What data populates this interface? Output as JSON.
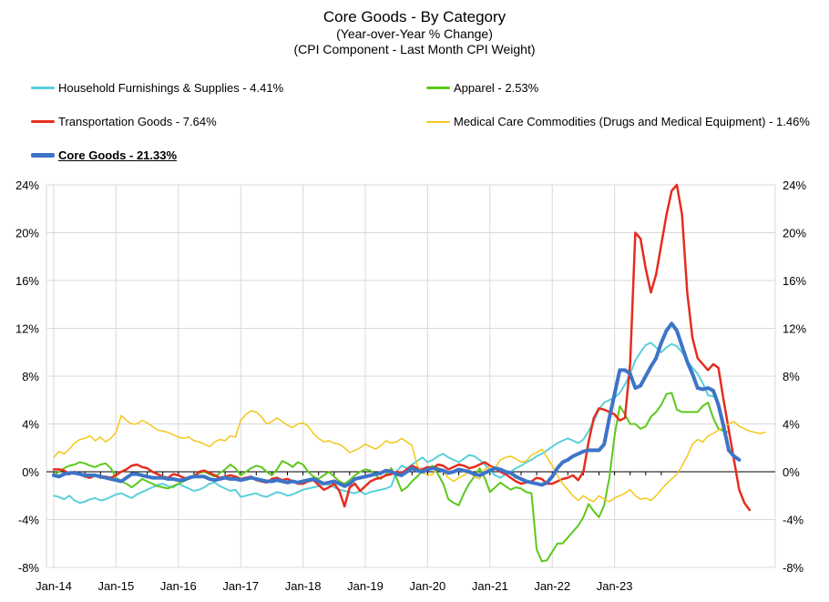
{
  "chart_data": {
    "type": "line",
    "title": "Core Goods - By Category",
    "subtitle1": "(Year-over-Year % Change)",
    "subtitle2": "(CPI Component - Last Month CPI Weight)",
    "x_ticks": [
      "Jan-14",
      "Jan-15",
      "Jan-16",
      "Jan-17",
      "Jan-18",
      "Jan-19",
      "Jan-20",
      "Jan-21",
      "Jan-22",
      "Jan-23"
    ],
    "x_start": "2014-01",
    "ylim": [
      -8,
      24
    ],
    "y_ticks": [
      -8,
      -4,
      0,
      4,
      8,
      12,
      16,
      20,
      24
    ],
    "y_tick_labels_left": [
      "-8%",
      "-4%",
      "0%",
      "4%",
      "8%",
      "12%",
      "16%",
      "20%",
      "24%"
    ],
    "y_tick_labels_right": [
      "-8%",
      "-4%",
      "0%",
      "4%",
      "8%",
      "12%",
      "16%",
      "20%",
      "24%"
    ],
    "grid": true,
    "series": [
      {
        "name": "Household Furnishings & Supplies - 4.41%",
        "color": "#5bcfd9",
        "width": 2,
        "values": [
          -2.0,
          -2.1,
          -2.3,
          -2.0,
          -2.4,
          -2.6,
          -2.5,
          -2.3,
          -2.2,
          -2.4,
          -2.3,
          -2.1,
          -1.9,
          -1.8,
          -2.0,
          -2.2,
          -1.9,
          -1.7,
          -1.5,
          -1.3,
          -1.1,
          -1.0,
          -1.2,
          -1.3,
          -1.0,
          -1.2,
          -1.4,
          -1.6,
          -1.5,
          -1.3,
          -1.0,
          -0.9,
          -1.2,
          -1.4,
          -1.6,
          -1.5,
          -2.1,
          -2.0,
          -1.9,
          -1.8,
          -2.0,
          -2.1,
          -1.9,
          -1.7,
          -1.8,
          -2.0,
          -1.9,
          -1.7,
          -1.5,
          -1.4,
          -1.3,
          -1.2,
          -1.0,
          -1.1,
          -1.3,
          -1.5,
          -1.6,
          -1.7,
          -1.8,
          -1.6,
          -1.9,
          -1.7,
          -1.6,
          -1.5,
          -1.4,
          -1.2,
          0.0,
          0.5,
          0.3,
          0.6,
          0.9,
          1.2,
          0.8,
          1.0,
          1.3,
          1.5,
          1.2,
          1.0,
          0.8,
          1.1,
          1.4,
          1.3,
          1.0,
          0.6,
          0.1,
          -0.3,
          -0.5,
          -0.2,
          0.0,
          0.3,
          0.5,
          0.8,
          1.0,
          1.3,
          1.5,
          1.8,
          2.1,
          2.4,
          2.6,
          2.8,
          2.6,
          2.4,
          2.7,
          3.4,
          4.2,
          5.2,
          5.8,
          6.0,
          6.2,
          6.6,
          7.3,
          8.2,
          9.3,
          10.0,
          10.6,
          10.8,
          10.4,
          10.0,
          10.4,
          10.7,
          10.5,
          10.0,
          9.3,
          8.7,
          8.2,
          7.4,
          6.4,
          6.3
        ]
      },
      {
        "name": "Apparel - 2.53%",
        "color": "#5cc81c",
        "width": 2,
        "values": [
          -0.3,
          0.0,
          0.3,
          0.5,
          0.6,
          0.8,
          0.7,
          0.5,
          0.4,
          0.6,
          0.7,
          0.3,
          -0.5,
          -0.8,
          -1.0,
          -1.3,
          -1.0,
          -0.6,
          -0.8,
          -1.0,
          -1.2,
          -1.3,
          -1.4,
          -1.2,
          -1.0,
          -0.8,
          -0.6,
          -0.3,
          -0.1,
          0.0,
          -0.2,
          -0.4,
          -0.1,
          0.2,
          0.6,
          0.3,
          -0.3,
          0.0,
          0.3,
          0.5,
          0.4,
          0.0,
          -0.3,
          0.2,
          0.9,
          0.7,
          0.4,
          0.8,
          0.6,
          0.0,
          -0.4,
          -0.6,
          -0.3,
          0.0,
          -0.4,
          -0.8,
          -1.0,
          -0.7,
          -0.3,
          0.0,
          0.2,
          0.1,
          -0.3,
          -0.6,
          -0.2,
          0.3,
          -0.5,
          -1.6,
          -1.3,
          -0.8,
          -0.4,
          0.1,
          0.3,
          0.5,
          -0.2,
          -1.0,
          -2.3,
          -2.6,
          -2.8,
          -1.8,
          -1.0,
          -0.4,
          0.3,
          -0.5,
          -1.7,
          -1.3,
          -0.9,
          -1.2,
          -1.5,
          -1.3,
          -1.4,
          -1.7,
          -1.8,
          -6.5,
          -7.5,
          -7.4,
          -6.7,
          -6.0,
          -6.0,
          -5.5,
          -5.0,
          -4.5,
          -3.8,
          -2.7,
          -3.3,
          -3.8,
          -2.8,
          -0.5,
          3.0,
          5.5,
          4.8,
          4.0,
          4.0,
          3.6,
          3.8,
          4.6,
          5.0,
          5.6,
          6.5,
          6.6,
          5.2,
          5.0,
          5.0,
          5.0,
          5.0,
          5.5,
          5.8,
          4.5,
          3.6,
          3.4,
          3.3
        ]
      },
      {
        "name": "Transportation Goods - 7.64%",
        "color": "#e52d1e",
        "width": 2.5,
        "values": [
          0.2,
          0.2,
          0.1,
          -0.2,
          0.0,
          -0.2,
          -0.4,
          -0.5,
          -0.3,
          -0.5,
          -0.4,
          -0.5,
          -0.3,
          0.0,
          0.2,
          0.5,
          0.6,
          0.4,
          0.3,
          0.0,
          -0.2,
          -0.4,
          -0.5,
          -0.2,
          -0.3,
          -0.5,
          -0.6,
          -0.4,
          0.0,
          0.1,
          -0.1,
          -0.3,
          -0.5,
          -0.4,
          -0.3,
          -0.4,
          -0.6,
          -0.5,
          -0.4,
          -0.7,
          -0.8,
          -0.9,
          -0.6,
          -0.5,
          -0.7,
          -0.6,
          -0.8,
          -1.0,
          -1.0,
          -0.8,
          -0.7,
          -1.1,
          -1.5,
          -1.3,
          -1.0,
          -1.6,
          -2.9,
          -1.3,
          -1.0,
          -1.6,
          -1.2,
          -0.8,
          -0.6,
          -0.5,
          -0.3,
          -0.2,
          0.0,
          -0.1,
          0.2,
          0.5,
          0.3,
          0.2,
          0.4,
          0.3,
          0.6,
          0.5,
          0.2,
          0.4,
          0.6,
          0.5,
          0.3,
          0.4,
          0.6,
          0.8,
          0.5,
          0.3,
          0.0,
          -0.2,
          -0.5,
          -0.8,
          -1.0,
          -0.9,
          -0.8,
          -0.5,
          -0.6,
          -1.0,
          -1.0,
          -0.8,
          -0.6,
          -0.5,
          -0.3,
          -0.7,
          0.0,
          2.5,
          4.5,
          5.3,
          5.2,
          5.0,
          4.8,
          4.3,
          4.5,
          9.0,
          20.0,
          19.5,
          17.0,
          15.0,
          16.5,
          19.0,
          21.5,
          23.5,
          24.0,
          21.5,
          15.0,
          11.2,
          9.5,
          9.0,
          8.5,
          9.0,
          8.7,
          6.0,
          3.5,
          1.0,
          -1.5,
          -2.6,
          -3.2
        ]
      },
      {
        "name": "Medical Care Commodities (Drugs and Medical Equipment) - 1.46%",
        "color": "#f4c71b",
        "width": 1.5,
        "values": [
          1.2,
          1.7,
          1.5,
          1.9,
          2.4,
          2.7,
          2.8,
          3.0,
          2.6,
          2.9,
          2.5,
          2.8,
          3.3,
          4.7,
          4.3,
          4.0,
          4.0,
          4.3,
          4.1,
          3.8,
          3.5,
          3.4,
          3.3,
          3.1,
          2.9,
          2.8,
          2.9,
          2.6,
          2.5,
          2.3,
          2.1,
          2.5,
          2.7,
          2.6,
          3.0,
          2.9,
          4.3,
          4.8,
          5.1,
          5.0,
          4.6,
          4.0,
          4.2,
          4.5,
          4.2,
          3.9,
          3.7,
          4.0,
          4.1,
          3.8,
          3.2,
          2.8,
          2.5,
          2.6,
          2.4,
          2.3,
          2.0,
          1.6,
          1.8,
          2.0,
          2.3,
          2.1,
          1.9,
          2.2,
          2.6,
          2.4,
          2.5,
          2.8,
          2.5,
          2.2,
          0.5,
          0.0,
          -0.3,
          -0.2,
          0.4,
          0.0,
          -0.5,
          -0.8,
          -0.5,
          -0.3,
          0.0,
          -0.4,
          -0.6,
          0.2,
          0.4,
          0.3,
          1.0,
          1.2,
          1.3,
          1.1,
          0.8,
          0.9,
          1.4,
          1.6,
          1.9,
          1.2,
          0.5,
          -0.3,
          -1.0,
          -1.5,
          -2.0,
          -2.4,
          -2.0,
          -2.3,
          -2.5,
          -2.0,
          -2.3,
          -2.5,
          -2.2,
          -2.0,
          -1.8,
          -1.5,
          -2.0,
          -2.3,
          -2.2,
          -2.4,
          -2.0,
          -1.5,
          -1.0,
          -0.6,
          -0.2,
          0.5,
          1.3,
          2.3,
          2.7,
          2.5,
          3.0,
          3.2,
          3.5,
          3.7,
          4.0,
          4.2,
          3.8,
          3.6,
          3.4,
          3.3,
          3.2,
          3.3
        ]
      },
      {
        "name": "Core Goods - 21.33%",
        "color": "#3d74c8",
        "width": 4,
        "values": [
          -0.3,
          -0.4,
          -0.2,
          -0.1,
          -0.1,
          -0.2,
          -0.3,
          -0.3,
          -0.3,
          -0.4,
          -0.5,
          -0.6,
          -0.7,
          -0.8,
          -0.5,
          -0.2,
          -0.2,
          -0.3,
          -0.4,
          -0.5,
          -0.5,
          -0.5,
          -0.6,
          -0.6,
          -0.7,
          -0.7,
          -0.5,
          -0.4,
          -0.4,
          -0.4,
          -0.6,
          -0.7,
          -0.6,
          -0.5,
          -0.6,
          -0.6,
          -0.7,
          -0.6,
          -0.5,
          -0.6,
          -0.7,
          -0.8,
          -0.8,
          -0.7,
          -0.8,
          -0.9,
          -0.8,
          -0.9,
          -0.8,
          -0.7,
          -0.6,
          -0.8,
          -1.0,
          -0.9,
          -0.8,
          -1.0,
          -1.2,
          -1.0,
          -0.6,
          -0.5,
          -0.4,
          -0.3,
          -0.2,
          -0.1,
          0.1,
          0.0,
          -0.2,
          -0.3,
          0.0,
          0.3,
          0.1,
          0.0,
          0.2,
          0.3,
          0.2,
          0.1,
          -0.1,
          0.0,
          0.2,
          0.1,
          0.0,
          -0.2,
          -0.3,
          -0.1,
          0.1,
          0.3,
          0.2,
          0.0,
          -0.1,
          -0.4,
          -0.6,
          -0.8,
          -0.9,
          -1.0,
          -1.1,
          -0.9,
          -0.4,
          0.3,
          0.8,
          1.0,
          1.3,
          1.5,
          1.7,
          1.8,
          1.8,
          1.8,
          2.3,
          4.5,
          6.5,
          8.5,
          8.5,
          8.2,
          7.0,
          7.2,
          8.0,
          8.8,
          9.5,
          10.8,
          11.8,
          12.4,
          11.8,
          10.5,
          9.2,
          8.2,
          7.0,
          6.9,
          7.0,
          6.8,
          5.6,
          3.8,
          1.8,
          1.3,
          1.0
        ]
      }
    ]
  }
}
